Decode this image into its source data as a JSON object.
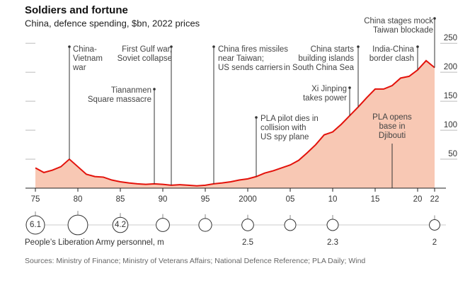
{
  "chart_data": {
    "type": "area",
    "title": "Soldiers and fortune",
    "subtitle": "China, defence spending, $bn, 2022 prices",
    "color": "#e3120b",
    "fill": "#f8c8b4",
    "x": [
      1975,
      1976,
      1977,
      1978,
      1979,
      1980,
      1981,
      1982,
      1983,
      1984,
      1985,
      1986,
      1987,
      1988,
      1989,
      1990,
      1991,
      1992,
      1993,
      1994,
      1995,
      1996,
      1997,
      1998,
      1999,
      2000,
      2001,
      2002,
      2003,
      2004,
      2005,
      2006,
      2007,
      2008,
      2009,
      2010,
      2011,
      2012,
      2013,
      2014,
      2015,
      2016,
      2017,
      2018,
      2019,
      2020,
      2021,
      2022
    ],
    "values": [
      35,
      27,
      31,
      37,
      50,
      37,
      24,
      20,
      19,
      14,
      11,
      9,
      7.5,
      6.5,
      7.5,
      6.5,
      5,
      6,
      5,
      4,
      5,
      7.5,
      9,
      11,
      14,
      16,
      20,
      26,
      30,
      35,
      40,
      48,
      61,
      75,
      92,
      97,
      110,
      125,
      140,
      156,
      171,
      171,
      177,
      190,
      193,
      204,
      220,
      208
    ],
    "xlim": [
      1975,
      2022
    ],
    "xticks": [
      {
        "value": 1975,
        "label": "75"
      },
      {
        "value": 1980,
        "label": "80"
      },
      {
        "value": 1985,
        "label": "85"
      },
      {
        "value": 1990,
        "label": "90"
      },
      {
        "value": 1995,
        "label": "95"
      },
      2000,
      {
        "value": 2005,
        "label": "05"
      },
      {
        "value": 2010,
        "label": "10"
      },
      {
        "value": 2015,
        "label": "15"
      },
      {
        "value": 2020,
        "label": "20"
      },
      {
        "value": 2022,
        "label": "22"
      }
    ],
    "ylim": [
      0,
      260
    ],
    "yticks": [
      50,
      100,
      150,
      200,
      250
    ],
    "annotations": [
      {
        "x": 1979,
        "text": [
          "China-",
          "Vietnam",
          "war"
        ]
      },
      {
        "x": 1989,
        "text": [
          "Tiananmen",
          "Square massacre"
        ]
      },
      {
        "x": 1991,
        "text": [
          "First Gulf war,",
          "Soviet collapse"
        ]
      },
      {
        "x": 1996,
        "text": [
          "China fires missiles",
          "near Taiwan;",
          "US sends carriers"
        ]
      },
      {
        "x": 2001,
        "text": [
          "PLA pilot dies in",
          "collision with",
          "US spy plane"
        ]
      },
      {
        "x": 2012,
        "text": [
          "Xi Jinping",
          "takes power"
        ]
      },
      {
        "x": 2013,
        "text": [
          "China starts",
          "building islands",
          "in South China Sea"
        ]
      },
      {
        "x": 2017,
        "text": [
          "PLA opens",
          "base in",
          "Djibouti"
        ]
      },
      {
        "x": 2020,
        "text": [
          "India-China",
          "border clash"
        ]
      },
      {
        "x": 2022,
        "text": [
          "China stages mock",
          "Taiwan blockade"
        ]
      }
    ],
    "personnel": {
      "label": "People’s Liberation Army personnel, m",
      "x": [
        1975,
        1980,
        1985,
        1990,
        1995,
        2000,
        2005,
        2010,
        2022
      ],
      "values": [
        6.1,
        7.0,
        4.2,
        3.2,
        3.0,
        2.5,
        2.3,
        2.3,
        2.0
      ],
      "show_value": [
        true,
        false,
        true,
        false,
        false,
        true,
        false,
        true,
        true
      ]
    },
    "source": "Sources: Ministry of Finance; Ministry of Veterans Affairs; National Defence Reference; PLA Daily; Wind"
  }
}
